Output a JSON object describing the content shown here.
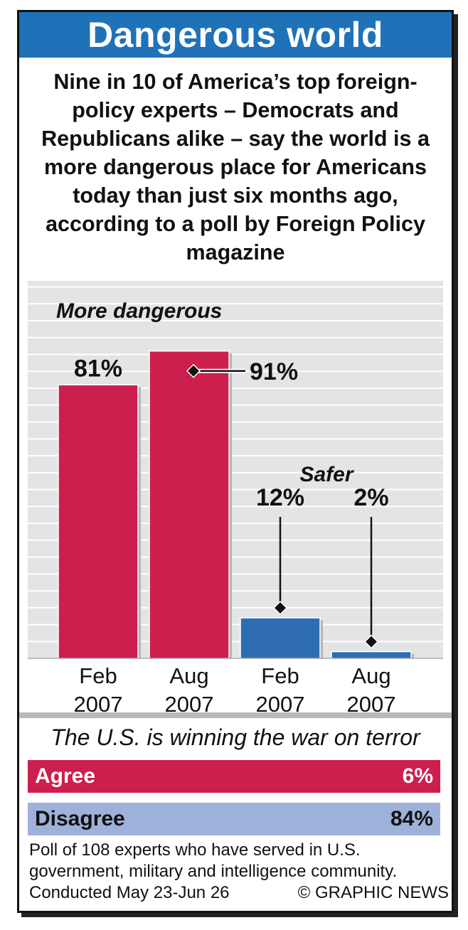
{
  "header": {
    "title": "Dangerous world"
  },
  "subtitle": "Nine in 10 of America’s top foreign-policy experts – Democrats and Republicans alike – say the world is a more dangerous place for Americans today than just six months ago, according to a poll by Foreign Policy magazine",
  "chart_data": {
    "type": "bar",
    "categories": [
      "Feb 2007",
      "Aug 2007",
      "Feb 2007",
      "Aug 2007"
    ],
    "category_lines": [
      [
        "Feb",
        "2007"
      ],
      [
        "Aug",
        "2007"
      ],
      [
        "Feb",
        "2007"
      ],
      [
        "Aug",
        "2007"
      ]
    ],
    "series": [
      {
        "name": "More dangerous",
        "values": [
          81,
          91,
          null,
          null
        ],
        "color": "#cc1f4e"
      },
      {
        "name": "Safer",
        "values": [
          null,
          null,
          12,
          2
        ],
        "color": "#2f6db3"
      }
    ],
    "values": [
      81,
      91,
      12,
      2
    ],
    "value_labels": [
      "81%",
      "91%",
      "12%",
      "2%"
    ],
    "group_labels": [
      "More dangerous",
      "Safer"
    ],
    "ylim": [
      0,
      100
    ],
    "grid": true
  },
  "poll": {
    "question": "The U.S. is winning the war on terror",
    "agree_label": "Agree",
    "agree_value": "6%",
    "disagree_label": "Disagree",
    "disagree_value": "84%",
    "colors": {
      "agree": "#cc1f4e",
      "disagree": "#9eb1da"
    }
  },
  "footnote": {
    "line1": "Poll of 108 experts who have served in U.S.",
    "line2": "government, military and intelligence community.",
    "conducted": "Conducted May 23-Jun 26",
    "credit": "© GRAPHIC NEWS"
  }
}
